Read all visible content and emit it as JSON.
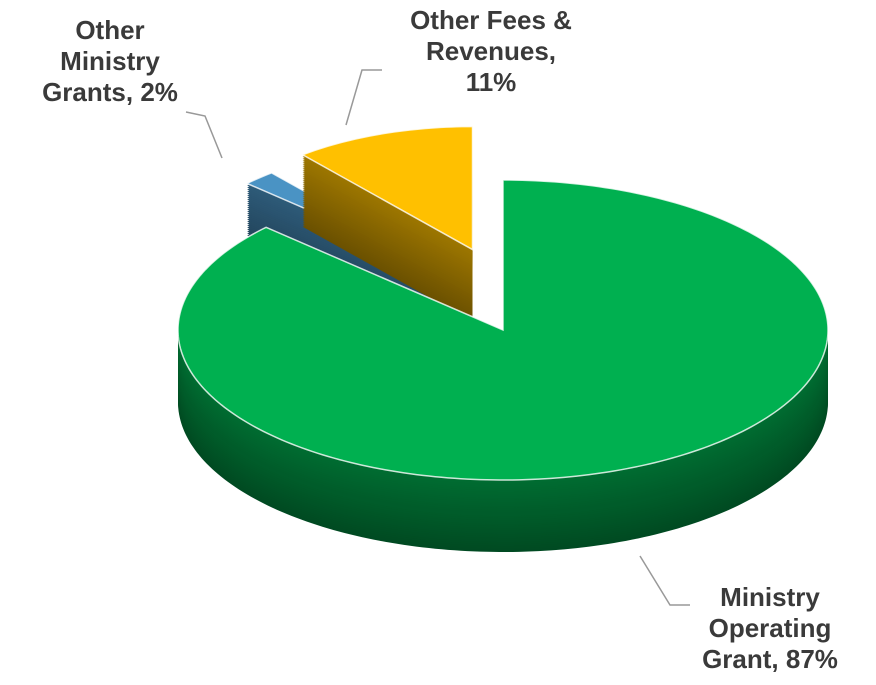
{
  "chart_data": {
    "type": "pie3d",
    "values": [
      87,
      2,
      11
    ],
    "value_labels": [
      "Ministry Operating Grant, 87%",
      "Other Ministry Grants, 2%",
      "Other Fees & Revenues, 11%"
    ],
    "colors": [
      "#00b050",
      "#4a93c4",
      "#ffc000"
    ]
  }
}
